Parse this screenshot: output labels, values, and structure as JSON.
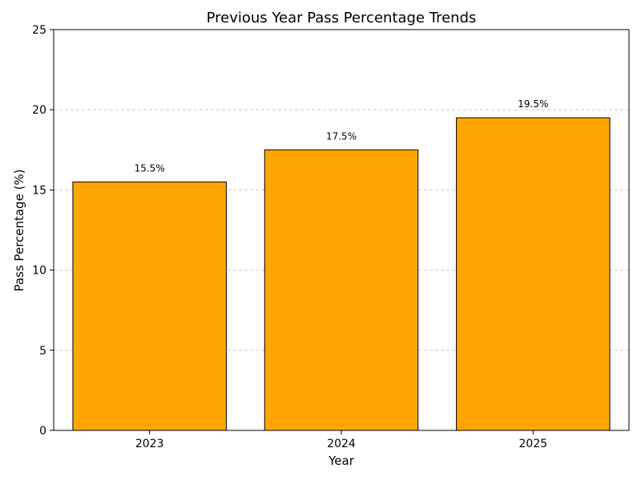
{
  "chart_data": {
    "type": "bar",
    "title": "Previous Year Pass Percentage Trends",
    "xlabel": "Year",
    "ylabel": "Pass Percentage (%)",
    "categories": [
      "2023",
      "2024",
      "2025"
    ],
    "values": [
      15.5,
      17.5,
      19.5
    ],
    "data_labels": [
      "15.5%",
      "17.5%",
      "19.5%"
    ],
    "ylim": [
      0,
      25
    ],
    "yticks": [
      0,
      5,
      10,
      15,
      20,
      25
    ],
    "ytick_labels": [
      "0",
      "5",
      "10",
      "15",
      "20",
      "25"
    ],
    "grid": "y-dashed",
    "bar_color": "#FFA500",
    "bar_edge_color": "#000000",
    "grid_color": "#c8c8c8",
    "legend": "none"
  }
}
